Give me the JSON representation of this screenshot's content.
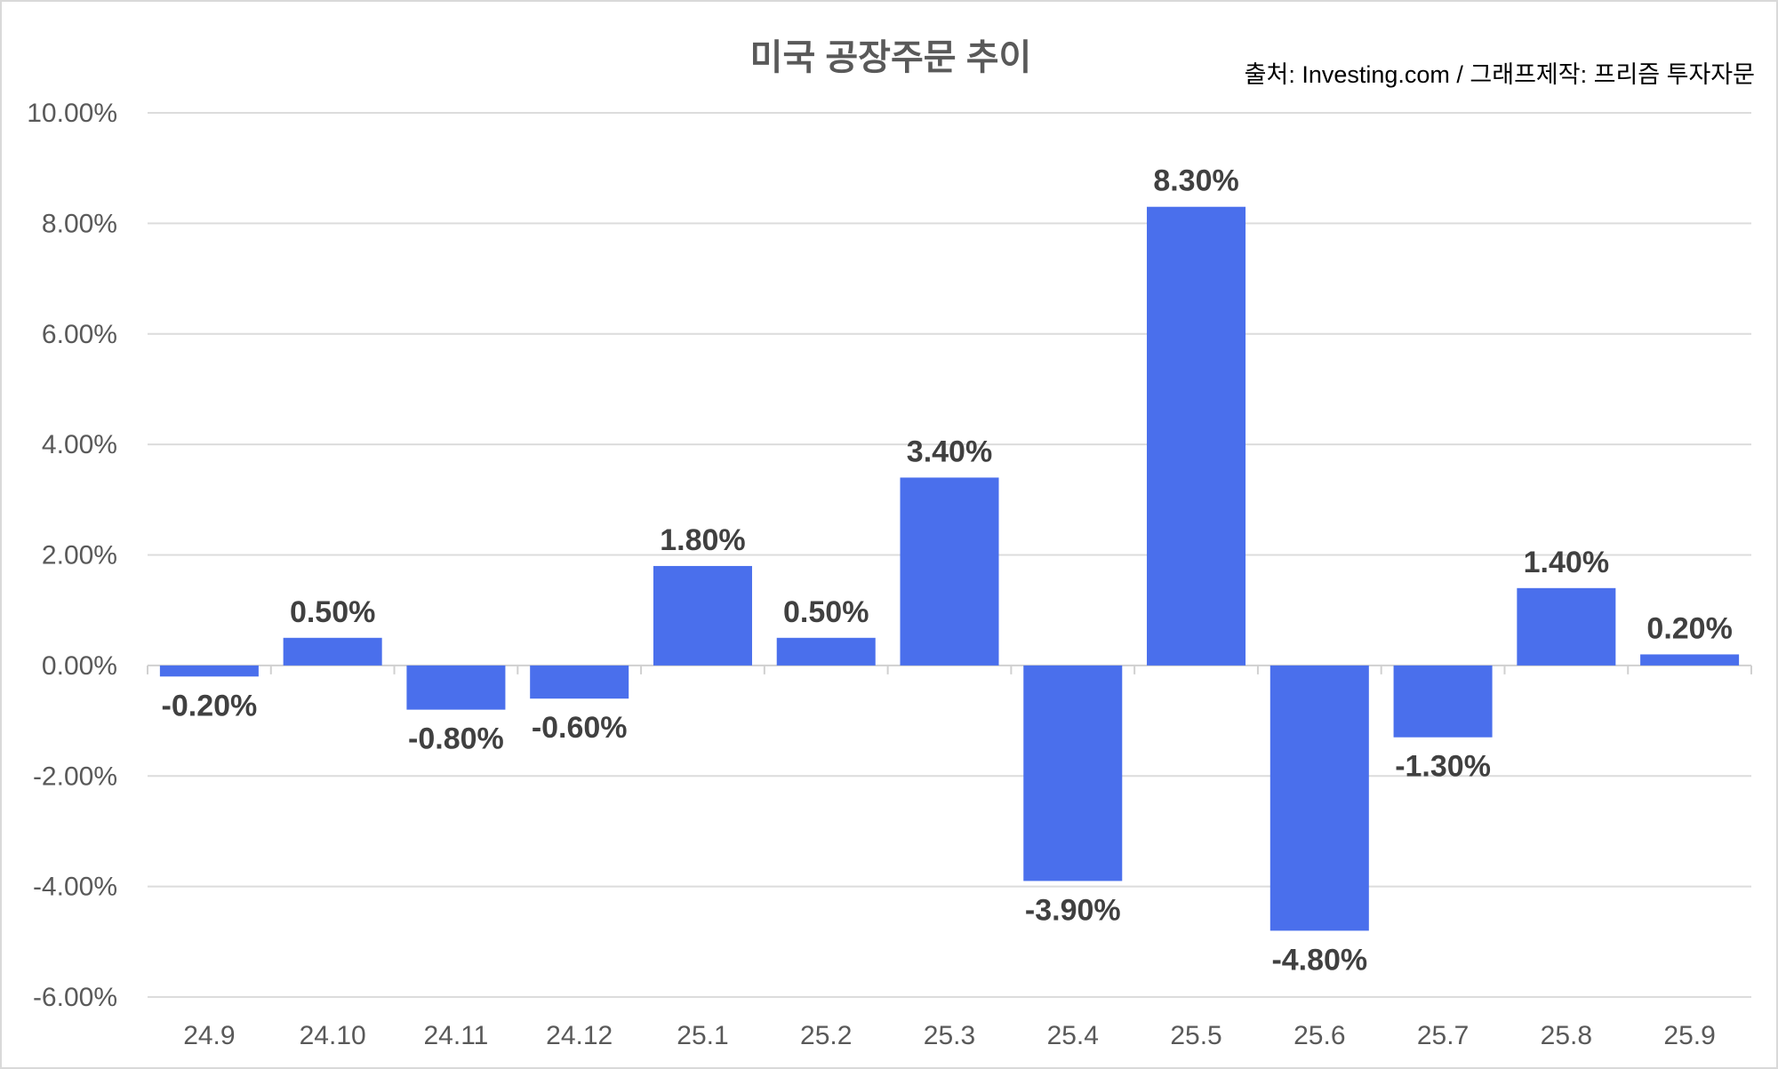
{
  "chart_data": {
    "type": "bar",
    "title": "미국 공장주문 추이",
    "source_note": "출처: Investing.com / 그래프제작: 프리즘 투자자문",
    "xlabel": "",
    "ylabel": "",
    "categories": [
      "24.9",
      "24.10",
      "24.11",
      "24.12",
      "25.1",
      "25.2",
      "25.3",
      "25.4",
      "25.5",
      "25.6",
      "25.7",
      "25.8",
      "25.9"
    ],
    "values": [
      -0.2,
      0.5,
      -0.8,
      -0.6,
      1.8,
      0.5,
      3.4,
      -3.9,
      8.3,
      -4.8,
      -1.3,
      1.4,
      0.2
    ],
    "data_labels": [
      "-0.20%",
      "0.50%",
      "-0.80%",
      "-0.60%",
      "1.80%",
      "0.50%",
      "3.40%",
      "-3.90%",
      "8.30%",
      "-4.80%",
      "-1.30%",
      "1.40%",
      "0.20%"
    ],
    "ylim": [
      -6,
      10
    ],
    "yticks": [
      10,
      8,
      6,
      4,
      2,
      0,
      -2,
      -4,
      -6
    ],
    "ytick_labels": [
      "10.00%",
      "8.00%",
      "6.00%",
      "4.00%",
      "2.00%",
      "0.00%",
      "-2.00%",
      "-4.00%",
      "-6.00%"
    ],
    "grid": true,
    "legend": "none",
    "bar_color": "#4a6fec"
  }
}
